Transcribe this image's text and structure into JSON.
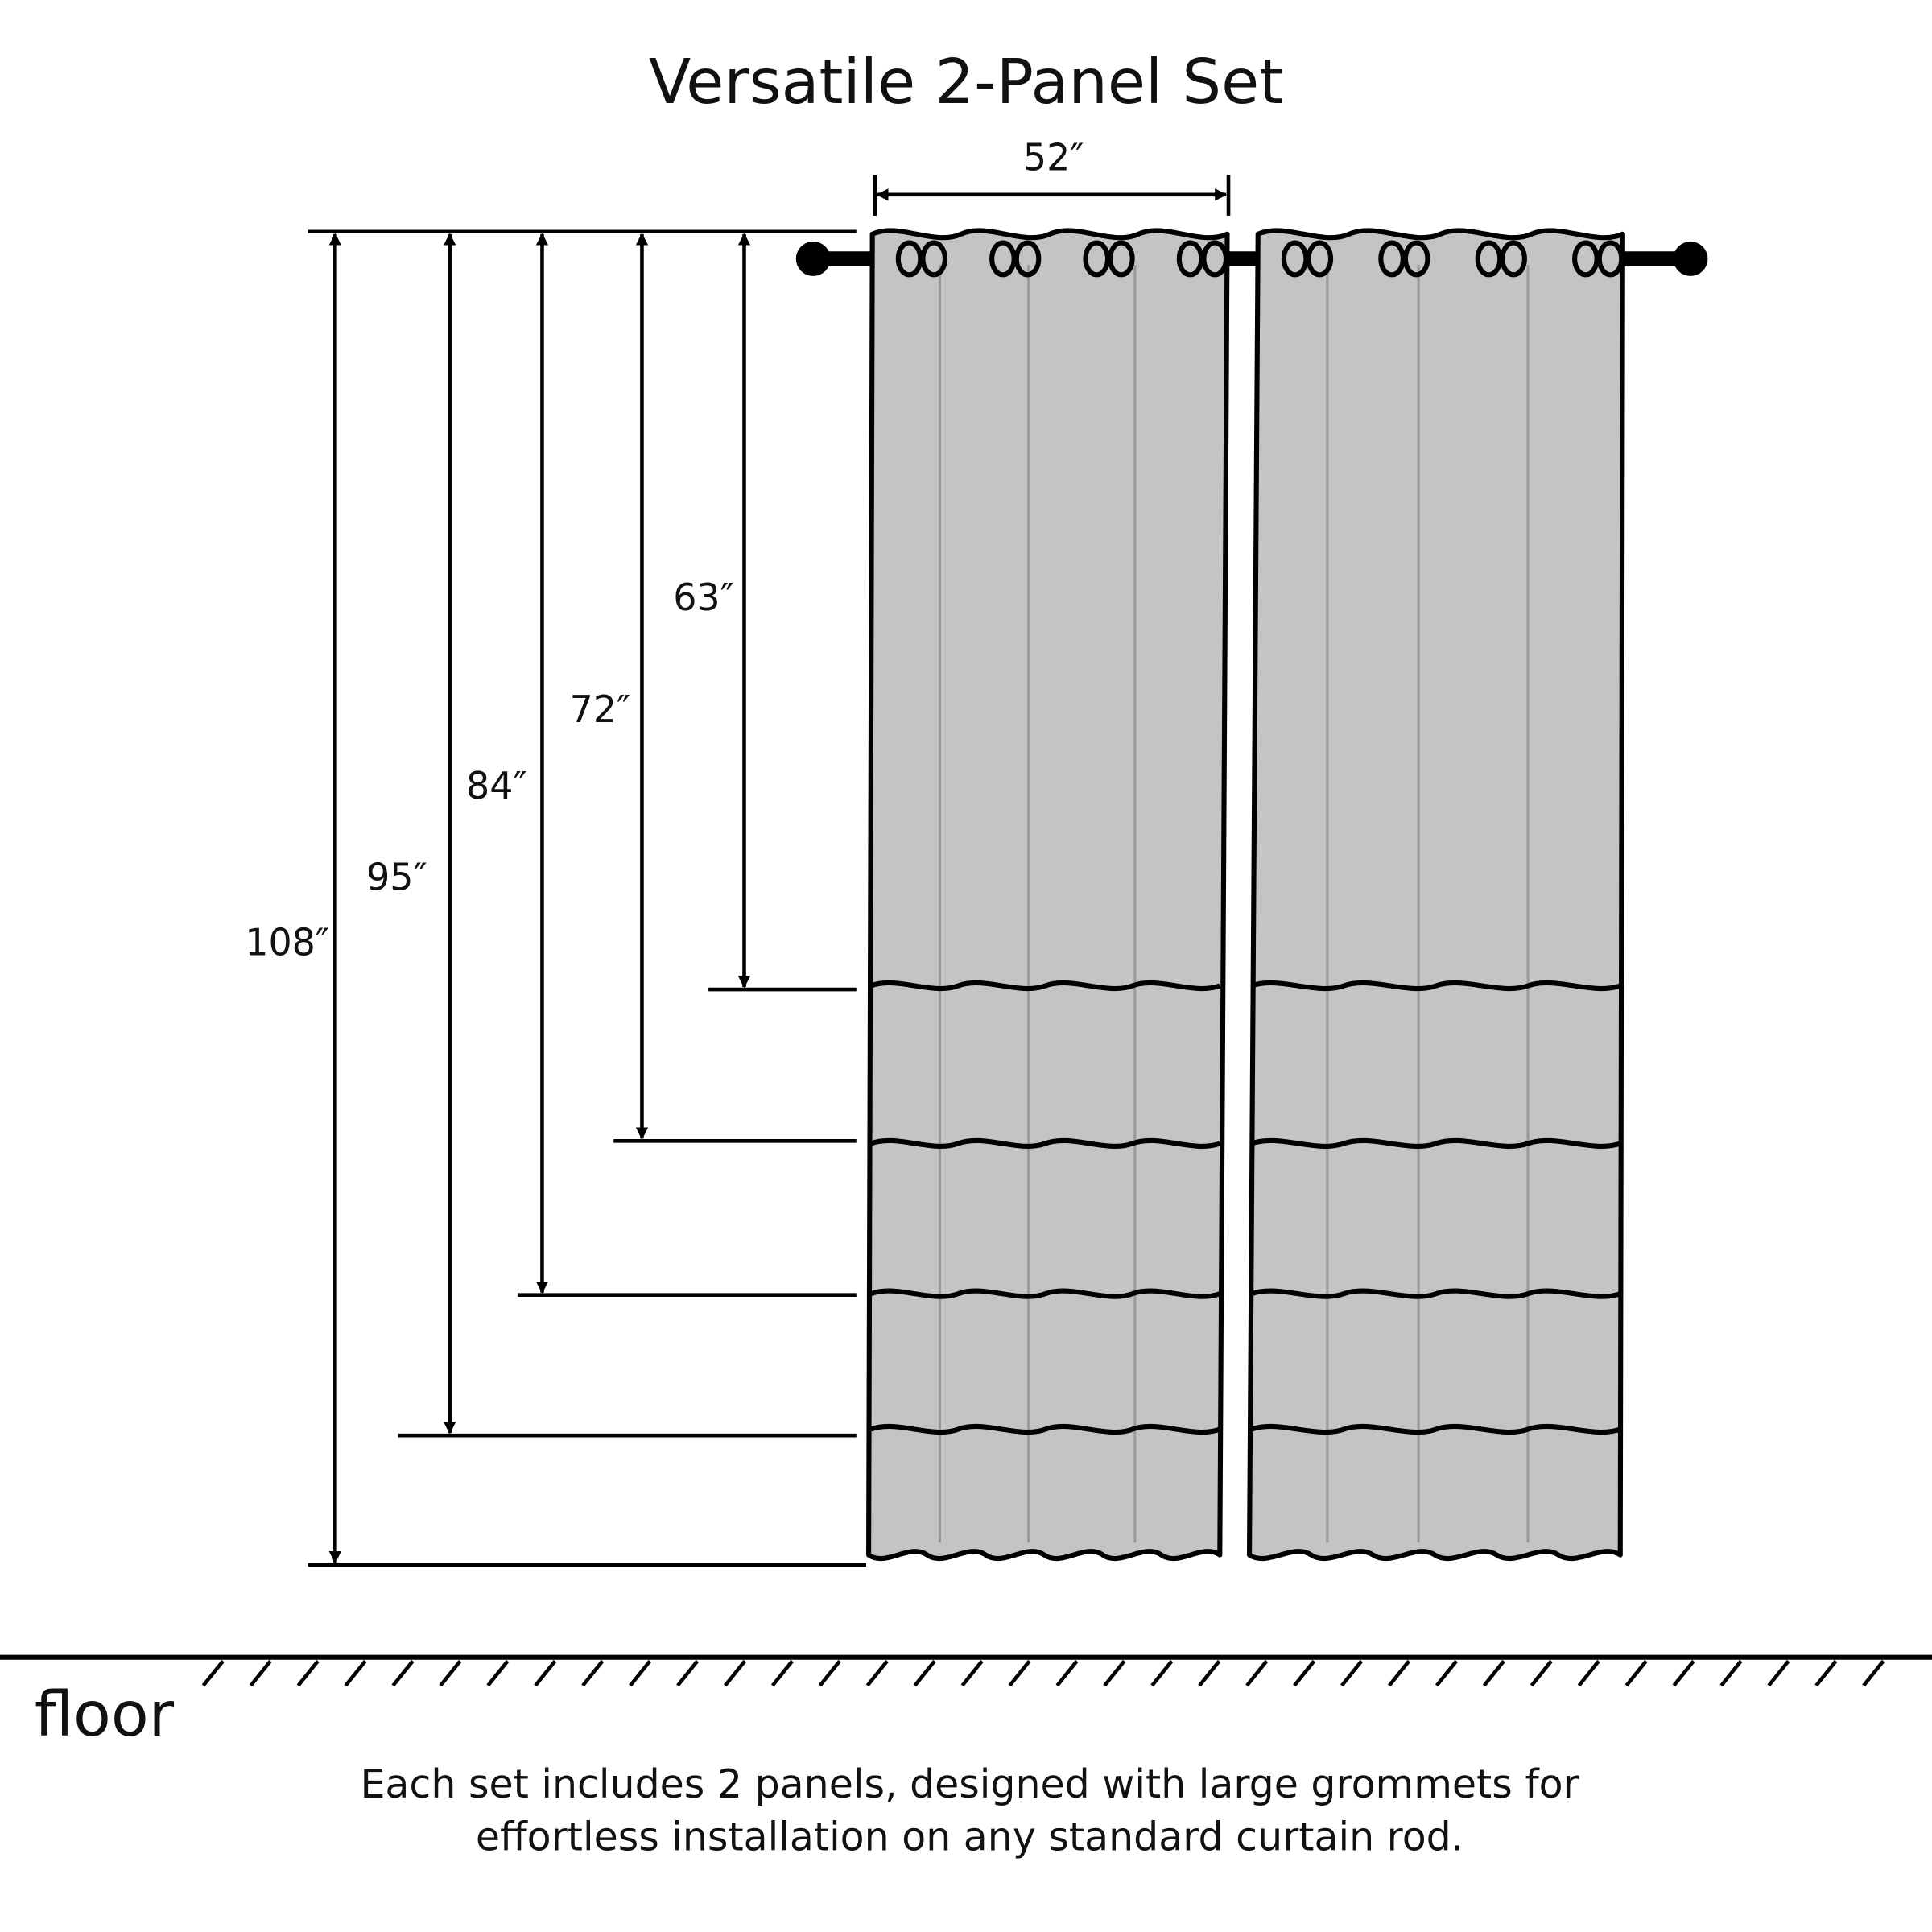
{
  "title": "Versatile 2-Panel Set",
  "width_label": "52″",
  "lengths": [
    "63″",
    "72″",
    "84″",
    "95″",
    "108″"
  ],
  "floor_label": "floor",
  "caption": [
    "Each set includes 2 panels, designed with large grommets for",
    "effortless installation on any standard curtain rod."
  ]
}
